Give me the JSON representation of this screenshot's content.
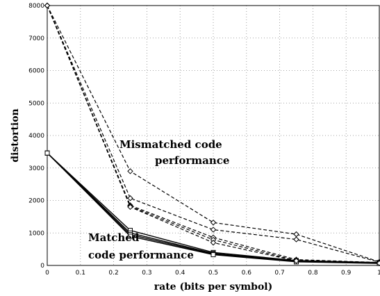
{
  "chart_data": {
    "type": "line",
    "xlabel": "rate (bits per symbol)",
    "ylabel": "distortion",
    "xlim": [
      0,
      1
    ],
    "ylim": [
      0,
      8000
    ],
    "grid": true,
    "x_ticks": [
      "0",
      "0.1",
      "0.2",
      "0.3",
      "0.4",
      "0.5",
      "0.6",
      "0.7",
      "0.8",
      "0.9",
      "1"
    ],
    "y_ticks": [
      "0",
      "1000",
      "2000",
      "3000",
      "4000",
      "5000",
      "6000",
      "7000",
      "8000"
    ],
    "annotations": {
      "mismatched_line1": "Mismatched code",
      "mismatched_line2": "performance",
      "matched_line1": "Matched",
      "matched_line2": "code performance"
    },
    "series": [
      {
        "style": "solid",
        "marker": "square",
        "x": [
          0,
          0.25,
          0.5,
          0.75,
          1
        ],
        "y": [
          3460,
          1080,
          400,
          150,
          90
        ]
      },
      {
        "style": "solid",
        "marker": "square",
        "x": [
          0,
          0.25,
          0.5,
          0.75,
          1
        ],
        "y": [
          3460,
          1000,
          370,
          130,
          80
        ]
      },
      {
        "style": "solid",
        "marker": "square",
        "x": [
          0,
          0.25,
          0.5,
          0.75,
          1
        ],
        "y": [
          3460,
          950,
          350,
          120,
          70
        ]
      },
      {
        "style": "solid",
        "marker": "square",
        "x": [
          0,
          0.25,
          0.5,
          0.75,
          1
        ],
        "y": [
          3460,
          900,
          330,
          110,
          60
        ]
      },
      {
        "style": "dashed",
        "marker": "diamond",
        "x": [
          0,
          0.25,
          0.5,
          0.75,
          1
        ],
        "y": [
          8000,
          2900,
          1320,
          960,
          110
        ]
      },
      {
        "style": "dashed",
        "marker": "diamond",
        "x": [
          0,
          0.25,
          0.5,
          0.75,
          1
        ],
        "y": [
          8000,
          2070,
          1100,
          800,
          100
        ]
      },
      {
        "style": "dashed",
        "marker": "diamond",
        "x": [
          0,
          0.25,
          0.5,
          0.75,
          1
        ],
        "y": [
          8000,
          1850,
          860,
          180,
          90
        ]
      },
      {
        "style": "dashed",
        "marker": "diamond",
        "x": [
          0,
          0.25,
          0.5,
          0.75,
          1
        ],
        "y": [
          8000,
          1820,
          790,
          150,
          80
        ]
      },
      {
        "style": "dashed",
        "marker": "diamond",
        "x": [
          0,
          0.25,
          0.5,
          0.75,
          1
        ],
        "y": [
          8000,
          1800,
          700,
          140,
          70
        ]
      }
    ]
  }
}
